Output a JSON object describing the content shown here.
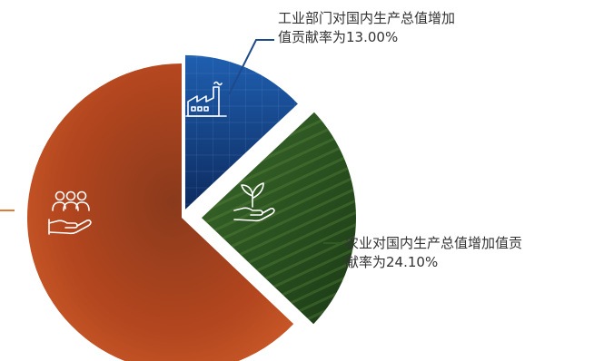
{
  "chart_data": {
    "type": "pie",
    "slices": [
      {
        "key": "industry",
        "value": 13.0,
        "label_lines": [
          "工业部门对国内生产总值增加",
          "值贡献率为13.00%"
        ],
        "icon": "factory-icon",
        "color": "#1e4a8c"
      },
      {
        "key": "agriculture",
        "value": 24.1,
        "label_lines": [
          "农业对国内生产总值增加值贡",
          "献率为24.10%"
        ],
        "icon": "plant-hand-icon",
        "color": "#2f5c23"
      },
      {
        "key": "services",
        "value": 62.9,
        "icon": "people-hand-icon",
        "color": "#b84a22"
      }
    ],
    "leader_colors": {
      "industry": "#1e4a8c",
      "agriculture": "#2f5c23",
      "services": "#e07a3a"
    }
  }
}
